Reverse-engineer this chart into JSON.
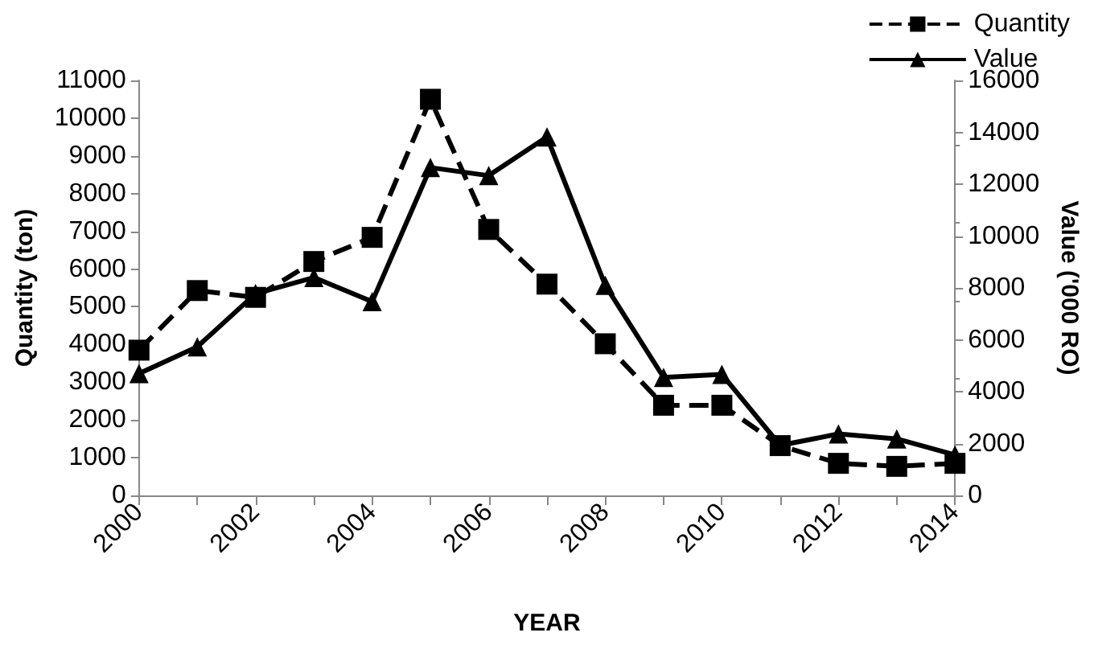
{
  "chart_data": {
    "type": "line",
    "xlabel": "YEAR",
    "ylabel": "Quantity (ton)",
    "y2label": "Value ('000 RO)",
    "x": [
      2000,
      2001,
      2002,
      2003,
      2004,
      2005,
      2006,
      2007,
      2008,
      2009,
      2010,
      2011,
      2012,
      2013,
      2014
    ],
    "series": [
      {
        "name": "Quantity",
        "color": "#000000",
        "marker": "square",
        "line_style": "dashed",
        "values": [
          3850,
          5430,
          5250,
          6200,
          6840,
          10500,
          7050,
          5600,
          4020,
          2390,
          2390,
          1320,
          850,
          770,
          850
        ]
      },
      {
        "name": "Value",
        "color": "#000000",
        "marker": "triangle",
        "line_style": "solid",
        "axis": "y2",
        "values": [
          4700,
          5730,
          7780,
          8400,
          7470,
          12640,
          12330,
          13820,
          8100,
          4550,
          4670,
          1930,
          2370,
          2180,
          1560
        ]
      }
    ],
    "xlim": [
      2000,
      2014
    ],
    "xticks": [
      2000,
      {
        "value": 2001,
        "label": null
      },
      2002,
      {
        "value": 2003,
        "label": null
      },
      2004,
      {
        "value": 2005,
        "label": null
      },
      2006,
      {
        "value": 2007,
        "label": null
      },
      2008,
      {
        "value": 2009,
        "label": null
      },
      2010,
      {
        "value": 2011,
        "label": null
      },
      2012,
      {
        "value": 2013,
        "label": null
      },
      2014
    ],
    "ylim": [
      0,
      11000
    ],
    "yticks": [
      0,
      1000,
      2000,
      3000,
      4000,
      5000,
      6000,
      7000,
      8000,
      9000,
      10000,
      11000
    ],
    "y2lim": [
      0,
      16000
    ],
    "y2ticks": [
      0,
      2000,
      4000,
      6000,
      8000,
      10000,
      12000,
      14000,
      16000
    ],
    "grid": false,
    "legend": "top right"
  }
}
